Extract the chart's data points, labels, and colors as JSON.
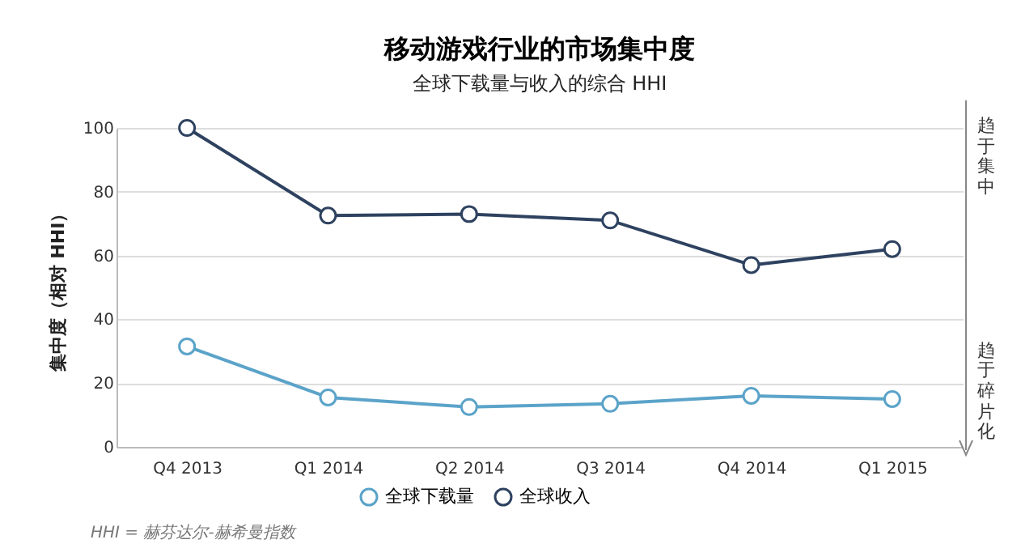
{
  "chart_data": {
    "type": "line",
    "title": "移动游戏行业的市场集中度",
    "subtitle": "全球下载量与收入的综合 HHI",
    "ylabel": "集中度（相对 HHI）",
    "categories": [
      "Q4 2013",
      "Q1 2014",
      "Q2 2014",
      "Q3 2014",
      "Q4 2014",
      "Q1 2015"
    ],
    "series": [
      {
        "name": "全球下载量",
        "color": "#5ba3c9",
        "values": [
          31.5,
          15.5,
          12.5,
          13.5,
          16,
          15
        ]
      },
      {
        "name": "全球收入",
        "color": "#2e4260",
        "values": [
          100,
          72.5,
          73,
          71,
          57,
          62
        ]
      }
    ],
    "ylim": [
      0,
      100
    ],
    "yticks": [
      0,
      20,
      40,
      60,
      80,
      100
    ],
    "grid": "y",
    "legend": "bottom",
    "marker": "circle",
    "line_style": "solid",
    "annotations": [
      "HHI = 赫芬达尔-赫希曼指数",
      "趋于集中",
      "趋于碎片化"
    ]
  }
}
